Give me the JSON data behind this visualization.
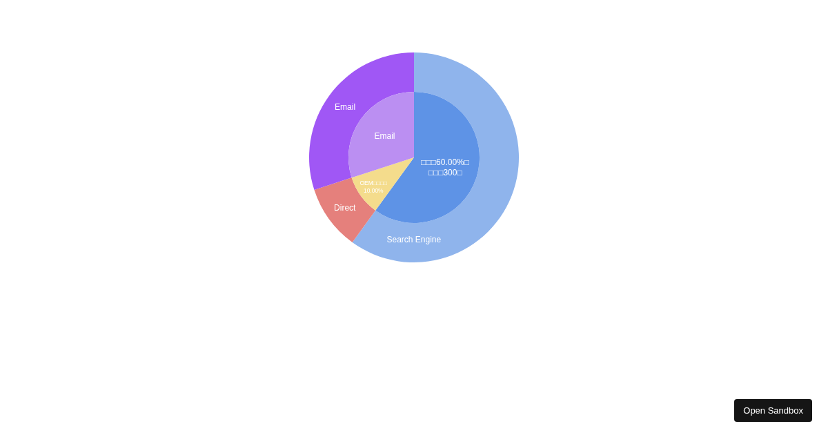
{
  "chart_data": [
    {
      "type": "donut",
      "categories": [
        "Search Engine",
        "Direct",
        "Email"
      ],
      "values": [
        60,
        10,
        30
      ],
      "colors": [
        "#8fb4ec",
        "#e5807c",
        "#a057f5"
      ],
      "legend": false,
      "annotations": [
        "Open Sandbox"
      ]
    },
    {
      "type": "pie",
      "categories": [
        "□□□60.00%□\n□□□300□",
        "OEM□□□□\n10.00%",
        "Email"
      ],
      "values": [
        60,
        10,
        30
      ],
      "colors": [
        "#5e93e6",
        "#f4dc8c",
        "#bb8ff2"
      ],
      "legend": false
    }
  ]
}
